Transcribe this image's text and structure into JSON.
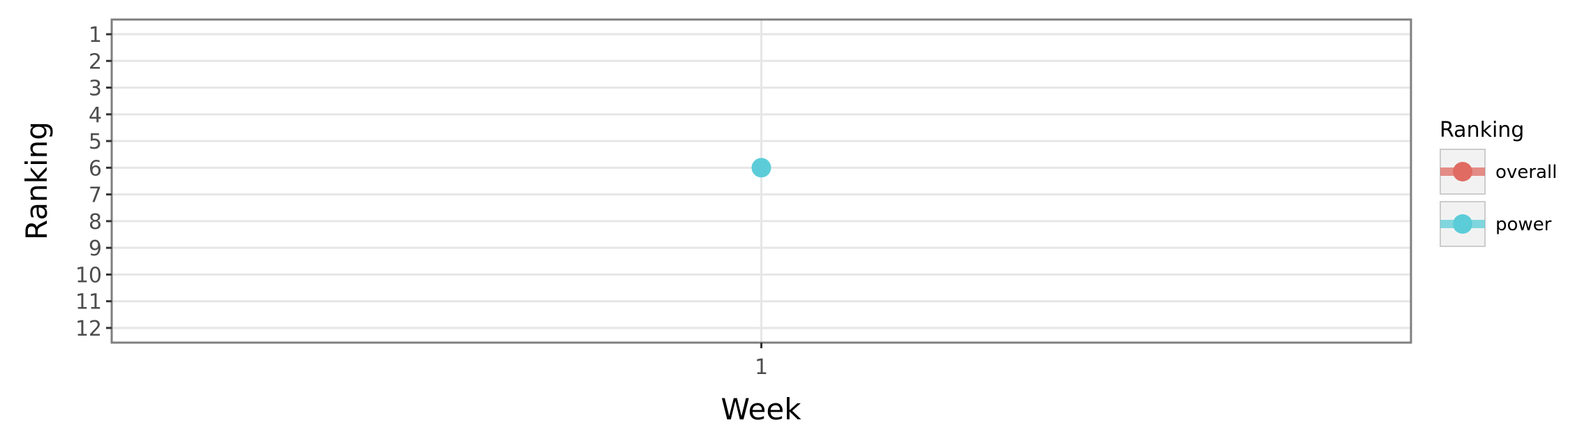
{
  "chart_data": {
    "type": "line",
    "title": "",
    "xlabel": "Week",
    "ylabel": "Ranking",
    "x_ticks": [
      "1"
    ],
    "y_ticks": [
      "1",
      "2",
      "3",
      "4",
      "5",
      "6",
      "7",
      "8",
      "9",
      "10",
      "11",
      "12"
    ],
    "ylim": [
      0.45,
      12.55
    ],
    "y_reversed": true,
    "grid": true,
    "legend": {
      "title": "Ranking",
      "placement": "right",
      "entries": [
        {
          "name": "overall",
          "color": "#e06b63"
        },
        {
          "name": "power",
          "color": "#5ccdd8"
        }
      ]
    },
    "series": [
      {
        "name": "overall",
        "color": "#e06b63",
        "points": []
      },
      {
        "name": "power",
        "color": "#5ccdd8",
        "points": [
          {
            "x": "1",
            "y": 6
          }
        ]
      }
    ]
  }
}
